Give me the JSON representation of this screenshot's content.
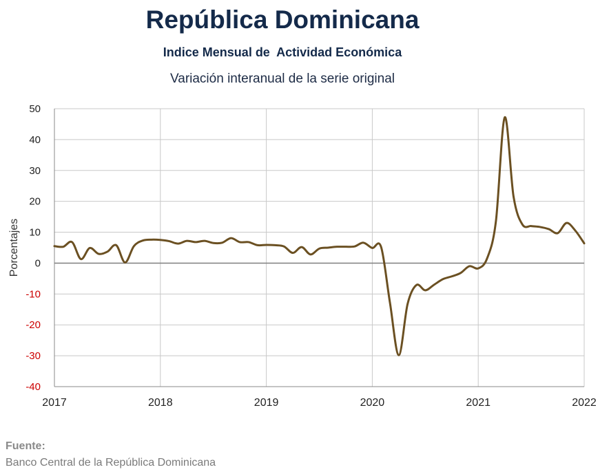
{
  "header": {
    "title": "República Dominicana",
    "subtitle": "Indice Mensual de  Actividad Económica",
    "subtitle2": "Variación interanual de la serie original"
  },
  "footer": {
    "source_label": "Fuente:",
    "source_text": "Banco Central de la República Dominicana"
  },
  "chart_data": {
    "type": "line",
    "title": "República Dominicana",
    "subtitle": "Variación interanual de la serie original",
    "xlabel": "",
    "ylabel": "Porcentajes",
    "xlim": [
      2017,
      2022
    ],
    "ylim": [
      -40,
      50
    ],
    "yticks": [
      50,
      40,
      30,
      20,
      10,
      0,
      -10,
      -20,
      -30,
      -40
    ],
    "xticks": [
      "2017",
      "2018",
      "2019",
      "2020",
      "2021",
      "2022"
    ],
    "grid": true,
    "legend": "none",
    "colors": {
      "line": "#6b5022",
      "negative_tick": "#cc0000",
      "zero_line": "#7f7f7f",
      "grid": "#c8c8c8"
    },
    "series": [
      {
        "name": "",
        "x": [
          "2017-01",
          "2017-02",
          "2017-03",
          "2017-04",
          "2017-05",
          "2017-06",
          "2017-07",
          "2017-08",
          "2017-09",
          "2017-10",
          "2017-11",
          "2017-12",
          "2018-01",
          "2018-02",
          "2018-03",
          "2018-04",
          "2018-05",
          "2018-06",
          "2018-07",
          "2018-08",
          "2018-09",
          "2018-10",
          "2018-11",
          "2018-12",
          "2019-01",
          "2019-02",
          "2019-03",
          "2019-04",
          "2019-05",
          "2019-06",
          "2019-07",
          "2019-08",
          "2019-09",
          "2019-10",
          "2019-11",
          "2019-12",
          "2020-01",
          "2020-02",
          "2020-03",
          "2020-04",
          "2020-05",
          "2020-06",
          "2020-07",
          "2020-08",
          "2020-09",
          "2020-10",
          "2020-11",
          "2020-12",
          "2021-01",
          "2021-02",
          "2021-03",
          "2021-04",
          "2021-05",
          "2021-06",
          "2021-07",
          "2021-08",
          "2021-09",
          "2021-10",
          "2021-11",
          "2021-12",
          "2022-01"
        ],
        "values": [
          5.5,
          5.3,
          6.8,
          1.3,
          4.9,
          3.0,
          3.7,
          5.8,
          0.2,
          5.5,
          7.3,
          7.6,
          7.5,
          7.1,
          6.3,
          7.2,
          6.8,
          7.2,
          6.5,
          6.6,
          8.1,
          6.8,
          6.8,
          5.8,
          5.9,
          5.8,
          5.4,
          3.3,
          5.2,
          2.8,
          4.7,
          5.0,
          5.3,
          5.3,
          5.4,
          6.6,
          4.9,
          5.2,
          -12.8,
          -29.8,
          -13.2,
          -7.1,
          -8.8,
          -7.0,
          -5.2,
          -4.3,
          -3.2,
          -1.0,
          -1.7,
          1.5,
          13.5,
          47.2,
          21.5,
          12.5,
          12.0,
          11.7,
          11.0,
          9.7,
          13.0,
          10.5,
          6.4
        ]
      }
    ]
  }
}
